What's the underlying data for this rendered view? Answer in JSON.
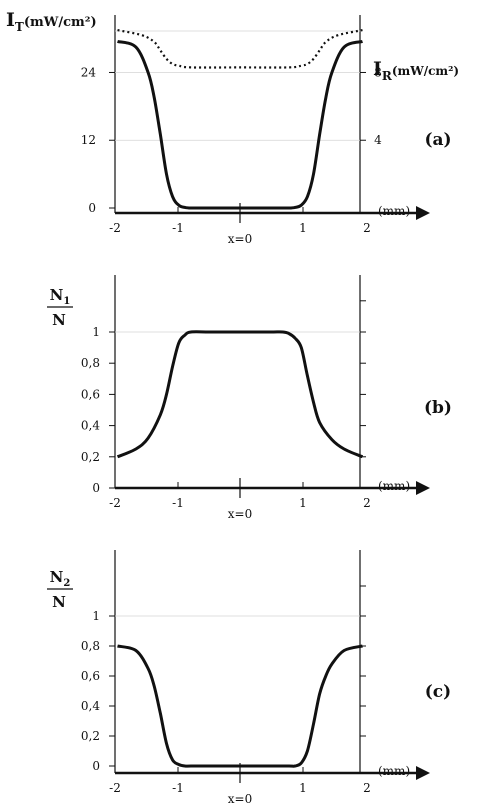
{
  "chart_data": [
    {
      "panel": "(a)",
      "type": "line",
      "left_axis_label": {
        "main": "I",
        "sub": "T",
        "rest": "(mW/cm²)"
      },
      "right_axis_label": {
        "main": "I",
        "sub": "R",
        "rest": "(mW/cm²)"
      },
      "x_unit": "(mm)",
      "x_origin_label": "x=0",
      "x_ticks": [
        "-2",
        "-1",
        "1",
        "2"
      ],
      "y_left_ticks": [
        "0",
        "12",
        "24"
      ],
      "y_right_ticks": [
        "4",
        "8"
      ],
      "ylim_left": [
        0,
        34
      ],
      "ylim_right": [
        0,
        11.33
      ],
      "grid": "y",
      "series": [
        {
          "axis": "left",
          "style": "solid",
          "x": [
            -2.0,
            -1.7,
            -1.5,
            -1.4,
            -1.3,
            -1.2,
            -1.1,
            -1.0,
            -0.9,
            -0.8,
            -0.5,
            0,
            0.5,
            0.8,
            0.9,
            1.0,
            1.1,
            1.2,
            1.3,
            1.4,
            1.5,
            1.7,
            2.0
          ],
          "y": [
            29.5,
            28.5,
            24,
            19.5,
            13,
            6,
            2,
            0.5,
            0.1,
            0,
            0,
            0,
            0,
            0,
            0.1,
            0.5,
            2,
            6,
            13,
            19.5,
            24,
            28.5,
            29.5
          ]
        },
        {
          "axis": "right",
          "style": "dotted",
          "x": [
            -2.0,
            -1.6,
            -1.4,
            -1.3,
            -1.2,
            -1.1,
            -1.0,
            -0.8,
            0,
            0.8,
            1.0,
            1.1,
            1.2,
            1.3,
            1.4,
            1.6,
            2.0
          ],
          "y": [
            10.5,
            10.2,
            9.8,
            9.3,
            8.8,
            8.5,
            8.4,
            8.3,
            8.3,
            8.3,
            8.4,
            8.5,
            8.8,
            9.3,
            9.8,
            10.2,
            10.5
          ]
        }
      ]
    },
    {
      "panel": "(b)",
      "type": "line",
      "y_label": {
        "num_main": "N",
        "num_sub": "1",
        "den": "N"
      },
      "x_unit": "(mm)",
      "x_origin_label": "x=0",
      "x_ticks": [
        "-2",
        "-1",
        "1",
        "2"
      ],
      "y_ticks": [
        "0",
        "0,2",
        "0,4",
        "0,6",
        "0,8",
        "1"
      ],
      "ylim": [
        0,
        1.2
      ],
      "grid": "y",
      "series": [
        {
          "style": "solid",
          "x": [
            -2.0,
            -1.7,
            -1.5,
            -1.3,
            -1.2,
            -1.1,
            -1.0,
            -0.9,
            -0.8,
            -0.5,
            0,
            0.5,
            0.7,
            0.8,
            0.9,
            1.0,
            1.1,
            1.2,
            1.3,
            1.5,
            1.7,
            2.0
          ],
          "y": [
            0.2,
            0.25,
            0.32,
            0.47,
            0.6,
            0.78,
            0.93,
            0.98,
            1.0,
            1.0,
            1.0,
            1.0,
            1.0,
            0.99,
            0.96,
            0.9,
            0.72,
            0.55,
            0.42,
            0.31,
            0.25,
            0.2
          ]
        }
      ]
    },
    {
      "panel": "(c)",
      "type": "line",
      "y_label": {
        "num_main": "N",
        "num_sub": "2",
        "den": "N"
      },
      "x_unit": "(mm)",
      "x_origin_label": "x=0",
      "x_ticks": [
        "-2",
        "-1",
        "1",
        "2"
      ],
      "y_ticks": [
        "0",
        "0,2",
        "0,4",
        "0,6",
        "0,8",
        "1"
      ],
      "ylim": [
        0,
        1.2
      ],
      "grid": "y",
      "series": [
        {
          "style": "solid",
          "x": [
            -2.0,
            -1.7,
            -1.5,
            -1.4,
            -1.3,
            -1.2,
            -1.1,
            -1.0,
            -0.9,
            -0.8,
            -0.5,
            0,
            0.5,
            0.8,
            0.9,
            1.0,
            1.1,
            1.2,
            1.3,
            1.4,
            1.5,
            1.7,
            2.0
          ],
          "y": [
            0.8,
            0.77,
            0.65,
            0.53,
            0.35,
            0.15,
            0.04,
            0.01,
            0,
            0,
            0,
            0,
            0,
            0,
            0,
            0.02,
            0.1,
            0.28,
            0.48,
            0.6,
            0.68,
            0.77,
            0.8
          ]
        }
      ]
    }
  ]
}
